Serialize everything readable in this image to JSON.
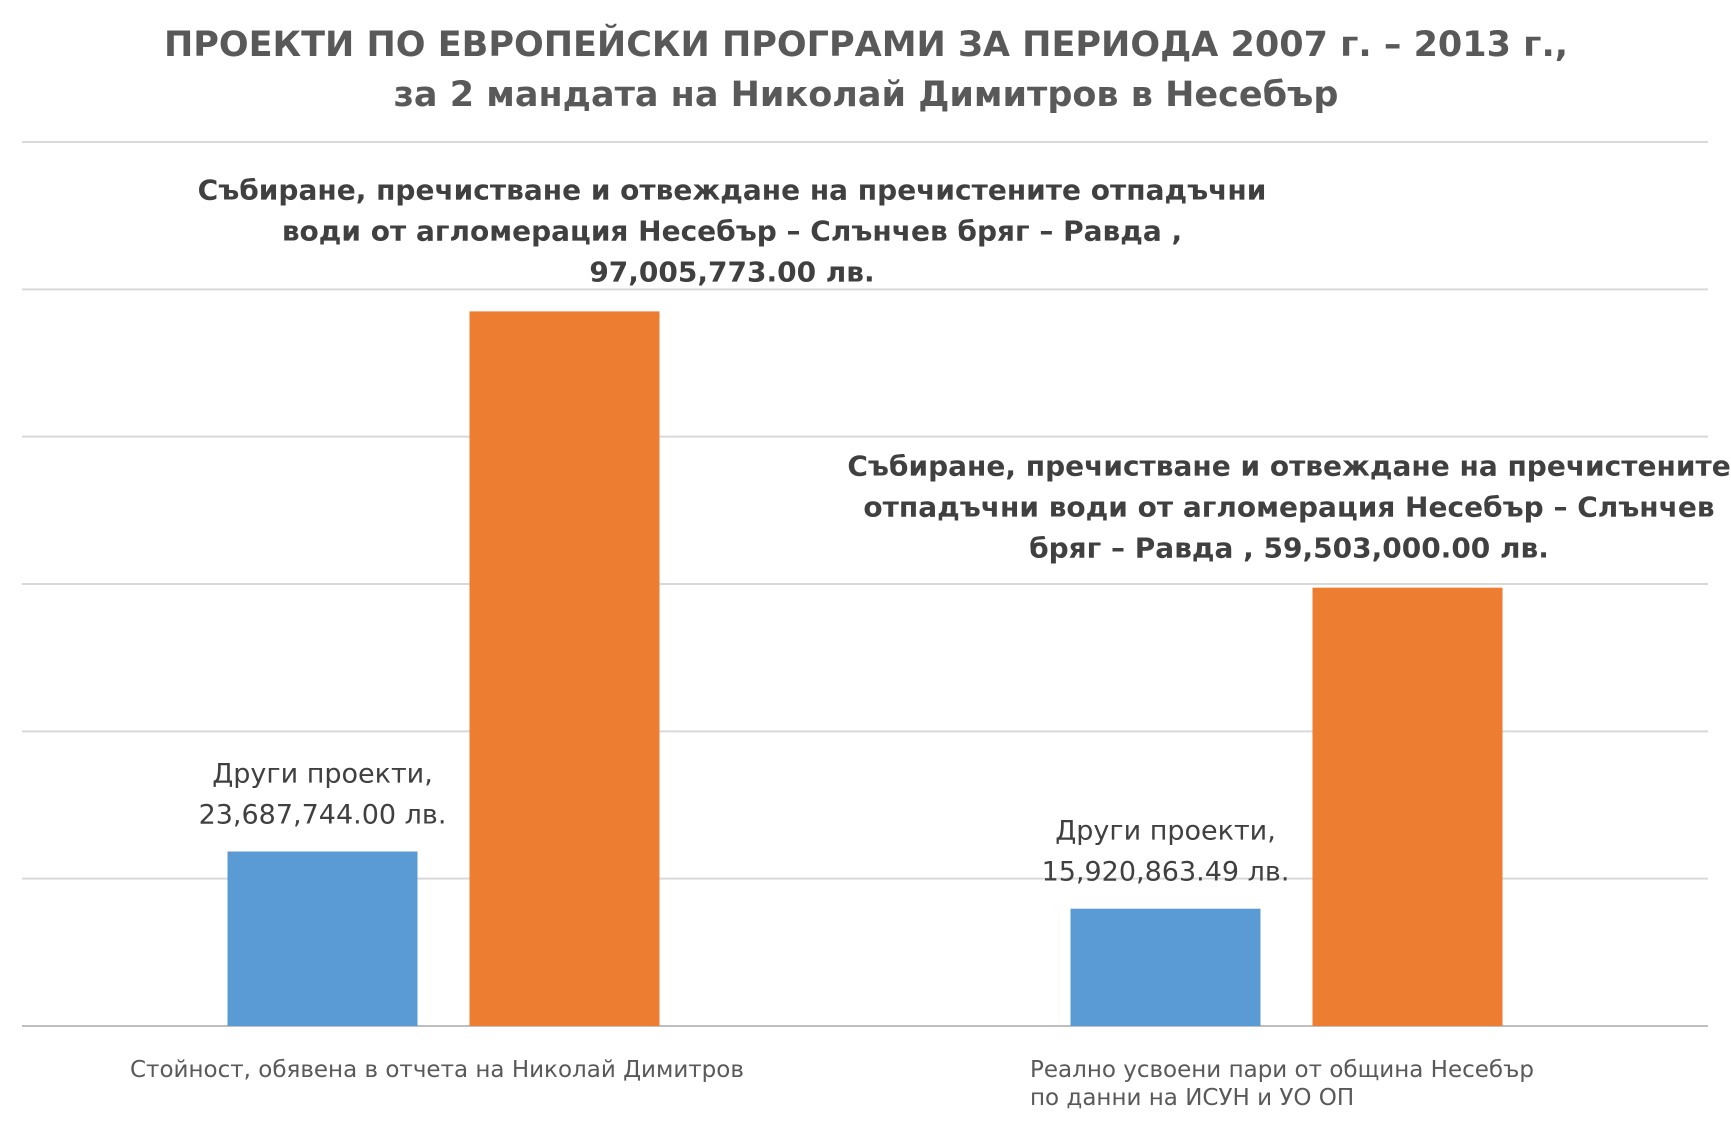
{
  "chart_data": {
    "type": "bar",
    "title_lines": [
      "ПРОЕКТИ ПО ЕВРОПЕЙСКИ ПРОГРАМИ ЗА ПЕРИОДА 2007 г. – 2013 г.,",
      "за 2 мандата на Николай Димитров в Несебър"
    ],
    "categories": [
      [
        "Стойност, обявена в отчета на Николай Димитров"
      ],
      [
        "Реално усвоени пари от община Несебър",
        "по данни на ИСУН и УО ОП"
      ]
    ],
    "series": [
      {
        "color": "#5b9bd5",
        "values": [
          23687744.0,
          15920863.49
        ],
        "data_labels": [
          [
            "Други проекти,",
            "23,687,744.00 лв."
          ],
          [
            "Други проекти,",
            "15,920,863.49 лв."
          ]
        ]
      },
      {
        "color": "#ed7d31",
        "values": [
          97005773.0,
          59503000.0
        ],
        "data_labels": [
          [
            "Събиране, пречистване и отвеждане на пречистените отпадъчни",
            "води от агломерация Несебър – Слънчев бряг – Равда ,",
            "97,005,773.00 лв."
          ],
          [
            "Събиране, пречистване и отвеждане на пречистените",
            "отпадъчни води от агломерация Несебър – Слънчев",
            "бряг – Равда , 59,503,000.00 лв."
          ]
        ]
      }
    ],
    "ylim": [
      0,
      120000000
    ],
    "gridlines": true,
    "axis_tick_labels_shown": false,
    "legend": "none"
  }
}
